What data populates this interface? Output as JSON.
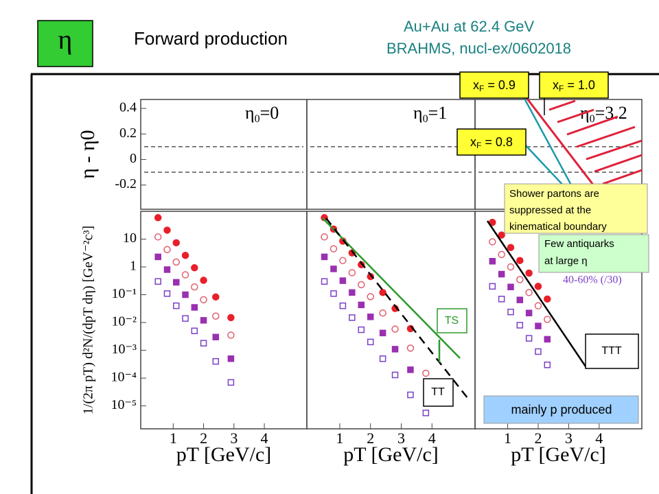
{
  "slide": {
    "symbol": "η",
    "title": "Forward production",
    "subtitle_lines": [
      "Au+Au at 62.4 GeV",
      "BRAHMS, nucl-ex/0602018"
    ]
  },
  "xf_labels": [
    {
      "var": "x",
      "sub": "F",
      "text": " = 0.9"
    },
    {
      "var": "x",
      "sub": "F",
      "text": " = 1.0"
    },
    {
      "var": "x",
      "sub": "F",
      "text": " = 0.8"
    }
  ],
  "notes": {
    "shower": [
      "Shower partons are",
      "suppressed at the",
      "kinematical boundary"
    ],
    "antiquarks": [
      "Few antiquarks",
      "at large η"
    ],
    "ts": "TS",
    "tt": "TT",
    "ttt": "TTT",
    "mainly_p": "mainly p produced"
  },
  "chart_data": [
    {
      "type": "scatter",
      "annotation": {
        "base": "η",
        "sub": "0",
        "text": "=0"
      },
      "y_label": "η - η0",
      "ylim": [
        -0.39,
        0.47
      ],
      "yticks": [
        -0.2,
        0,
        0.2,
        0.4
      ],
      "ref_lines": [
        0.1,
        -0.1
      ]
    },
    {
      "type": "scatter",
      "annotation": {
        "base": "η",
        "sub": "0",
        "text": "=1"
      },
      "ylim": [
        -0.39,
        0.47
      ],
      "ref_lines": [
        0.1,
        -0.1
      ]
    },
    {
      "type": "scatter",
      "annotation": {
        "base": "η",
        "sub": "0",
        "text": "=3.2"
      },
      "ylim": [
        -0.39,
        0.47
      ],
      "ref_lines": [
        0.1,
        -0.1
      ]
    },
    {
      "type": "scatter",
      "log_y": true,
      "y_label": "1/(2π pT) d²N/(dpT dη) [GeV⁻²c³]",
      "x_label": "pT [GeV/c]",
      "xlim": [
        -0.07,
        5.4
      ],
      "xticks": [
        1,
        2,
        3,
        4
      ],
      "ylim": [
        1.5e-06,
        100
      ],
      "yticks": [
        10,
        1,
        {
          "value": 0.1,
          "label": "10⁻¹"
        },
        {
          "value": 0.01,
          "label": "10⁻²"
        },
        {
          "value": 0.001,
          "label": "10⁻³"
        },
        {
          "value": 0.0001,
          "label": "10⁻⁴"
        },
        {
          "value": 1e-05,
          "label": "10⁻⁵"
        }
      ],
      "x": [
        0.5,
        0.8,
        1.1,
        1.4,
        1.7,
        2.0,
        2.4,
        2.9
      ],
      "series": [
        {
          "color": "#e8202a",
          "marker": "circle",
          "filled": true,
          "values": [
            59,
            21,
            7.4,
            2.6,
            0.93,
            0.33,
            0.083,
            0.015
          ]
        },
        {
          "color": "#e06070",
          "marker": "circle",
          "filled": false,
          "values": [
            12,
            4.2,
            1.5,
            0.52,
            0.19,
            0.066,
            0.017,
            0.0035
          ]
        },
        {
          "color": "#9a30b0",
          "marker": "square",
          "filled": true,
          "values": [
            2.3,
            0.8,
            0.28,
            0.1,
            0.035,
            0.012,
            0.003,
            0.0005
          ]
        },
        {
          "color": "#7a40c8",
          "marker": "square",
          "filled": false,
          "values": [
            0.3,
            0.11,
            0.04,
            0.014,
            0.005,
            0.0018,
            0.0004,
            7e-05
          ]
        }
      ]
    },
    {
      "type": "scatter",
      "log_y": true,
      "x_label": "pT [GeV/c]",
      "xlim": [
        -0.07,
        5.4
      ],
      "xticks": [
        1,
        2,
        3,
        4
      ],
      "ylim": [
        1.5e-06,
        100
      ],
      "x": [
        0.5,
        0.8,
        1.1,
        1.4,
        1.7,
        2.0,
        2.4,
        2.8,
        3.3,
        3.8
      ],
      "series": [
        {
          "color": "#e8202a",
          "marker": "circle",
          "filled": true,
          "values": [
            59,
            23,
            8.5,
            3.2,
            1.2,
            0.45,
            0.12,
            0.032,
            0.006,
            null
          ]
        },
        {
          "color": "#e06070",
          "marker": "circle",
          "filled": false,
          "values": [
            12,
            4.5,
            1.7,
            0.62,
            0.23,
            0.085,
            0.022,
            0.0058,
            0.0012,
            0.00015
          ]
        },
        {
          "color": "#9a30b0",
          "marker": "square",
          "filled": true,
          "values": [
            2.3,
            0.85,
            0.32,
            0.12,
            0.043,
            0.016,
            0.0042,
            0.0011,
            0.0002,
            null
          ]
        },
        {
          "color": "#7a40c8",
          "marker": "square",
          "filled": false,
          "values": [
            0.3,
            0.11,
            0.04,
            0.015,
            0.0055,
            0.002,
            0.0005,
            0.00013,
            2.5e-05,
            5.6e-06
          ]
        }
      ]
    },
    {
      "type": "scatter",
      "log_y": true,
      "x_label": "pT [GeV/c]",
      "xlim": [
        -0.07,
        5.4
      ],
      "xticks": [
        1,
        2,
        3,
        4
      ],
      "ylim": [
        1.5e-06,
        100
      ],
      "legend_text": "40-60% (/30)",
      "x": [
        0.5,
        0.8,
        1.1,
        1.4,
        1.7,
        2.0,
        2.3
      ],
      "series": [
        {
          "color": "#e8202a",
          "marker": "circle",
          "filled": true,
          "values": [
            40,
            14,
            5,
            1.7,
            0.6,
            0.2,
            0.07
          ]
        },
        {
          "color": "#e06070",
          "marker": "circle",
          "filled": false,
          "values": [
            8,
            2.8,
            1,
            0.35,
            0.12,
            0.04,
            0.013
          ]
        },
        {
          "color": "#9a30b0",
          "marker": "square",
          "filled": true,
          "values": [
            1.6,
            0.55,
            0.19,
            0.065,
            0.022,
            0.0075,
            0.0025
          ]
        },
        {
          "color": "#7a40c8",
          "marker": "square",
          "filled": false,
          "values": [
            0.2,
            0.07,
            0.024,
            0.008,
            0.0027,
            0.0009,
            0.0003
          ]
        }
      ]
    }
  ]
}
